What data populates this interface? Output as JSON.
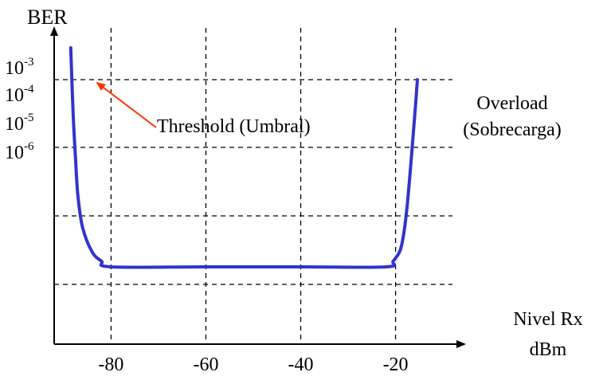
{
  "chart_data": {
    "type": "line",
    "ylabel": "BER",
    "xlabel_line1": "Nivel Rx",
    "xlabel_line2": "dBm",
    "x_ticks": [
      "-80",
      "-60",
      "-40",
      "-20"
    ],
    "y_ticks": [
      {
        "base": "10",
        "exp": "-3"
      },
      {
        "base": "10",
        "exp": "-4"
      },
      {
        "base": "10",
        "exp": "-5"
      },
      {
        "base": "10",
        "exp": "-6"
      }
    ],
    "xlim": [
      -92,
      -8
    ],
    "grid": true,
    "annotations": {
      "threshold": "Threshold (Umbral)",
      "overload_line1": "Overload",
      "overload_line2": "(Sobrecarga)"
    },
    "series": [
      {
        "color": "#3333cc",
        "x": [
          -88.5,
          -88,
          -87.5,
          -87,
          -86,
          -84,
          -82,
          -80,
          -60,
          -40,
          -22,
          -20.5,
          -19,
          -18.2,
          -17.5,
          -16.8,
          -16.3,
          -15.8,
          -15.4
        ],
        "level": [
          0.0,
          0.18,
          0.42,
          0.62,
          0.79,
          0.92,
          0.97,
          1.0,
          1.0,
          1.0,
          1.0,
          0.97,
          0.91,
          0.81,
          0.66,
          0.46,
          0.3,
          0.14,
          0.0
        ]
      }
    ],
    "colors": {
      "curve": "#3333cc",
      "arrow": "#ff3300"
    }
  }
}
